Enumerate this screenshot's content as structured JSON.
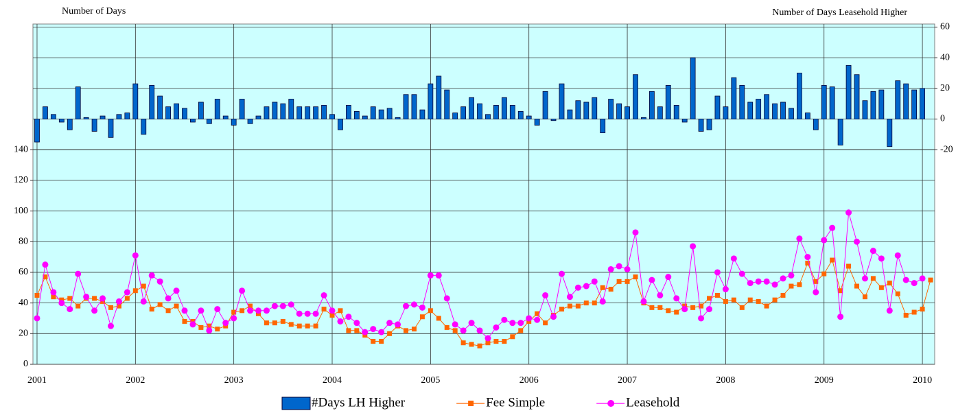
{
  "chart_data": {
    "type": "combo",
    "y_label": "Number of Days",
    "y2_label": "Number of Days Leasehold Higher",
    "categories": [
      "2001",
      null,
      null,
      null,
      null,
      null,
      null,
      null,
      null,
      null,
      null,
      null,
      "2002",
      null,
      null,
      null,
      null,
      null,
      null,
      null,
      null,
      null,
      null,
      null,
      "2003",
      null,
      null,
      null,
      null,
      null,
      null,
      null,
      null,
      null,
      null,
      null,
      "2004",
      null,
      null,
      null,
      null,
      null,
      null,
      null,
      null,
      null,
      null,
      null,
      "2005",
      null,
      null,
      null,
      null,
      null,
      null,
      null,
      null,
      null,
      null,
      null,
      "2006",
      null,
      null,
      null,
      null,
      null,
      null,
      null,
      null,
      null,
      null,
      null,
      "2007",
      null,
      null,
      null,
      null,
      null,
      null,
      null,
      null,
      null,
      null,
      null,
      "2008",
      null,
      null,
      null,
      null,
      null,
      null,
      null,
      null,
      null,
      null,
      null,
      "2009",
      null,
      null,
      null,
      null,
      null,
      null,
      null,
      null,
      null,
      null,
      null,
      "2010",
      null
    ],
    "ylim": [
      0,
      222
    ],
    "yticks": [
      0,
      20,
      40,
      60,
      80,
      100,
      120,
      140
    ],
    "y2lim": [
      -160,
      62
    ],
    "y2ticks": [
      -20,
      0,
      20,
      40,
      60
    ],
    "grid": true,
    "background": "#ccffff",
    "legend": "bottom",
    "series": [
      {
        "name": "#Days LH Higher",
        "type": "bar",
        "axis": "y2",
        "color": "#0066cc",
        "values": [
          -15,
          8,
          3,
          -2,
          -7,
          21,
          1,
          -8,
          2,
          -12,
          3,
          4,
          23,
          -10,
          22,
          15,
          8,
          10,
          7,
          -2,
          11,
          -3,
          13,
          2,
          -4,
          13,
          -3,
          2,
          8,
          11,
          10,
          13,
          8,
          8,
          8,
          9,
          3,
          -7,
          9,
          5,
          2,
          8,
          6,
          7,
          1,
          16,
          16,
          6,
          23,
          28,
          19,
          4,
          8,
          14,
          10,
          3,
          9,
          14,
          9,
          5,
          2,
          -4,
          18,
          -1,
          23,
          6,
          12,
          11,
          14,
          -9,
          13,
          10,
          8,
          29,
          1,
          18,
          8,
          22,
          9,
          -2,
          40,
          -8,
          -7,
          15,
          8,
          27,
          22,
          11,
          13,
          16,
          10,
          11,
          7,
          30,
          4,
          -7,
          22,
          21,
          -17,
          35,
          29,
          12,
          18,
          19,
          -18,
          25,
          23,
          19,
          20,
          null
        ]
      },
      {
        "name": "Fee Simple",
        "type": "line",
        "marker": "square",
        "color": "#ff6600",
        "values": [
          45,
          57,
          44,
          42,
          43,
          38,
          43,
          43,
          41,
          37,
          38,
          43,
          48,
          51,
          36,
          39,
          35,
          38,
          28,
          28,
          24,
          25,
          23,
          25,
          34,
          35,
          38,
          33,
          27,
          27,
          28,
          26,
          25,
          25,
          25,
          36,
          32,
          35,
          22,
          22,
          19,
          15,
          15,
          20,
          25,
          22,
          23,
          31,
          35,
          30,
          24,
          22,
          14,
          13,
          12,
          14,
          15,
          15,
          18,
          22,
          28,
          33,
          27,
          32,
          36,
          38,
          38,
          40,
          40,
          50,
          49,
          54,
          54,
          57,
          40,
          37,
          37,
          35,
          34,
          38,
          37,
          38,
          43,
          45,
          41,
          42,
          37,
          42,
          41,
          38,
          42,
          45,
          51,
          52,
          66,
          54,
          59,
          68,
          48,
          64,
          51,
          44,
          56,
          50,
          53,
          46,
          32,
          34,
          36,
          55
        ]
      },
      {
        "name": "Leasehold",
        "type": "line",
        "marker": "circle",
        "color": "#ff00ff",
        "values": [
          30,
          65,
          47,
          40,
          36,
          59,
          44,
          35,
          43,
          25,
          41,
          47,
          71,
          41,
          58,
          54,
          43,
          48,
          35,
          26,
          35,
          22,
          36,
          27,
          30,
          48,
          35,
          35,
          35,
          38,
          38,
          39,
          33,
          33,
          33,
          45,
          35,
          28,
          31,
          27,
          21,
          23,
          21,
          27,
          26,
          38,
          39,
          37,
          58,
          58,
          43,
          26,
          22,
          27,
          22,
          17,
          24,
          29,
          27,
          27,
          30,
          29,
          45,
          31,
          59,
          44,
          50,
          51,
          54,
          41,
          62,
          64,
          62,
          86,
          41,
          55,
          45,
          57,
          43,
          36,
          77,
          30,
          36,
          60,
          49,
          69,
          59,
          53,
          54,
          54,
          52,
          56,
          58,
          82,
          70,
          47,
          81,
          89,
          31,
          99,
          80,
          56,
          74,
          69,
          35,
          71,
          55,
          53,
          56,
          null
        ]
      }
    ]
  }
}
